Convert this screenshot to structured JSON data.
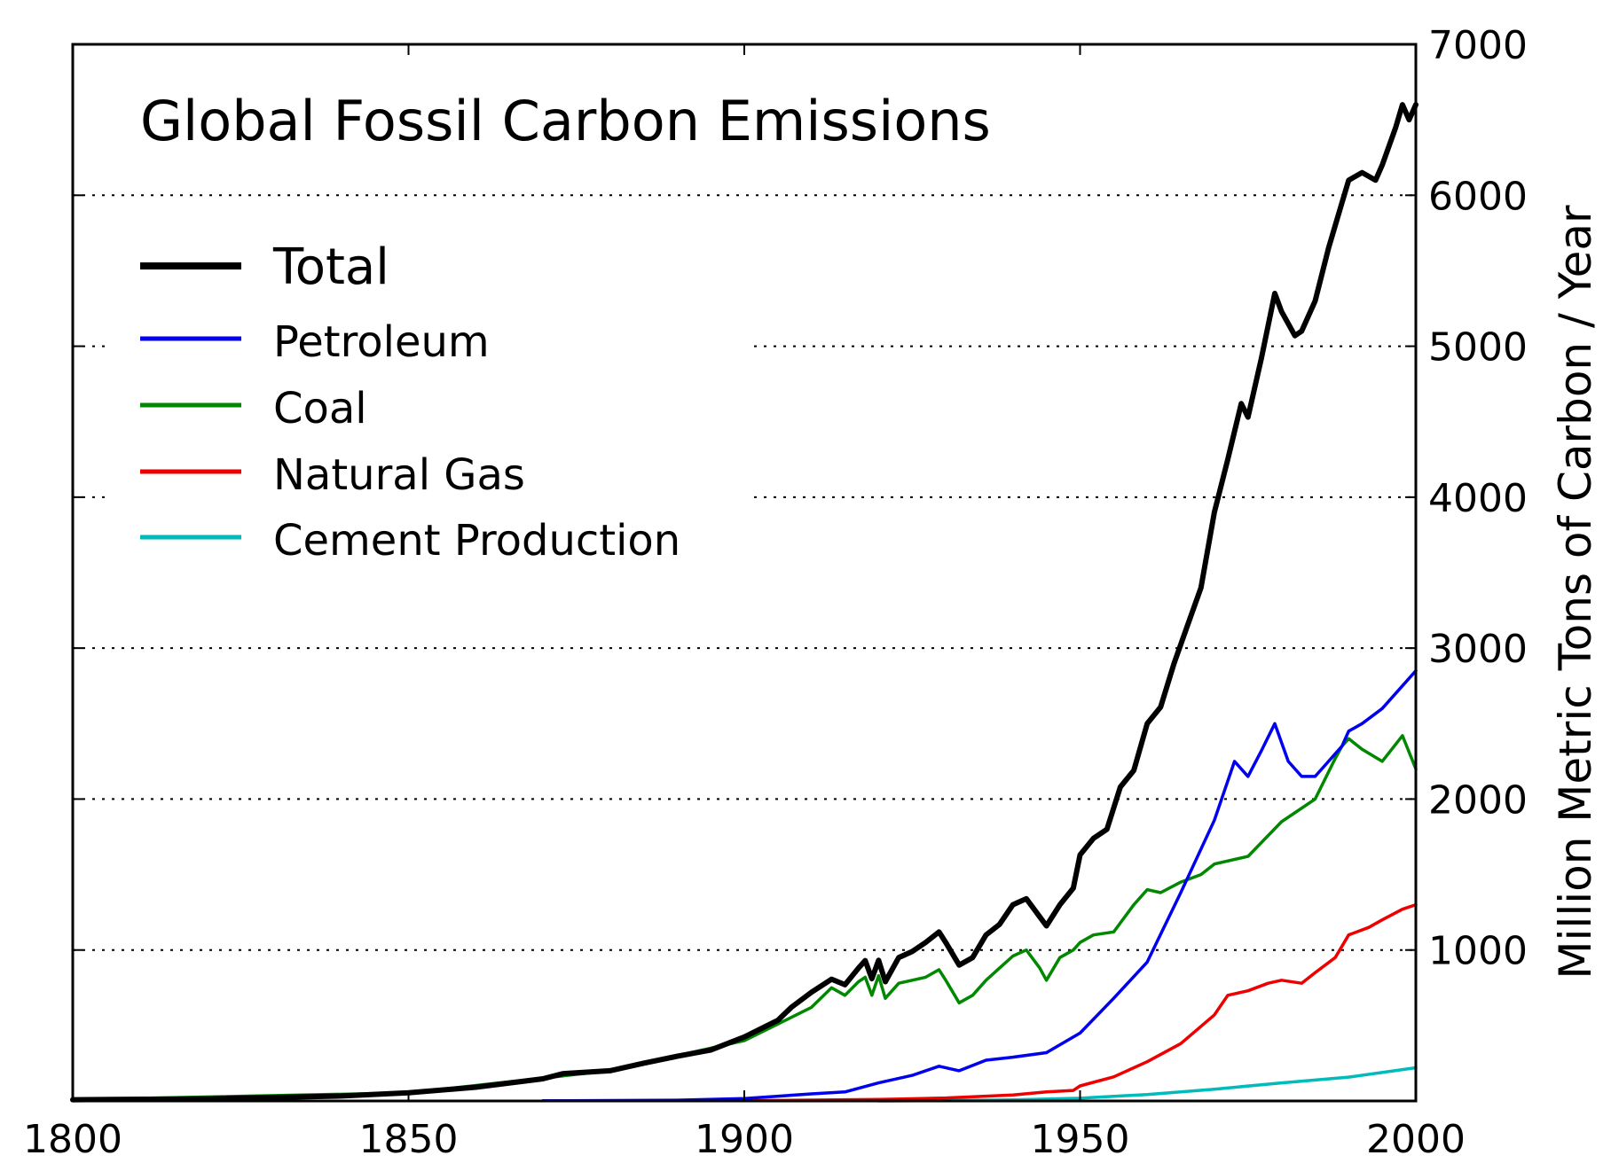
{
  "chart_data": {
    "type": "line",
    "title": "Global Fossil Carbon Emissions",
    "xlabel": "",
    "ylabel": "Million Metric Tons of Carbon / Year",
    "xlim": [
      1800,
      2000
    ],
    "ylim": [
      0,
      7000
    ],
    "x_ticks": [
      1800,
      1850,
      1900,
      1950,
      2000
    ],
    "y_ticks": [
      1000,
      2000,
      3000,
      4000,
      5000,
      6000,
      7000
    ],
    "y_axis_position": "right",
    "grid": "horizontal dotted",
    "legend_position": "top-left",
    "series": [
      {
        "name": "Total",
        "color": "#000000",
        "x": [
          1800,
          1820,
          1840,
          1850,
          1860,
          1870,
          1873,
          1880,
          1885,
          1890,
          1895,
          1900,
          1905,
          1907,
          1910,
          1913,
          1915,
          1917,
          1918,
          1919,
          1920,
          1921,
          1923,
          1925,
          1927,
          1929,
          1930,
          1932,
          1934,
          1936,
          1938,
          1940,
          1942,
          1944,
          1945,
          1947,
          1949,
          1950,
          1952,
          1954,
          1956,
          1958,
          1960,
          1962,
          1964,
          1966,
          1968,
          1970,
          1972,
          1974,
          1975,
          1977,
          1979,
          1980,
          1982,
          1983,
          1985,
          1987,
          1989,
          1990,
          1992,
          1994,
          1995,
          1997,
          1998,
          1999,
          2000
        ],
        "values": [
          8,
          14,
          33,
          54,
          91,
          147,
          181,
          200,
          250,
          296,
          337,
          424,
          535,
          620,
          720,
          807,
          770,
          880,
          930,
          810,
          932,
          790,
          950,
          990,
          1050,
          1120,
          1050,
          900,
          950,
          1100,
          1170,
          1300,
          1340,
          1220,
          1160,
          1300,
          1410,
          1630,
          1740,
          1800,
          2080,
          2190,
          2500,
          2610,
          2900,
          3150,
          3400,
          3900,
          4250,
          4620,
          4530,
          4920,
          5350,
          5230,
          5070,
          5100,
          5300,
          5650,
          5950,
          6100,
          6150,
          6100,
          6200,
          6450,
          6600,
          6500,
          6600
        ]
      },
      {
        "name": "Petroleum",
        "color": "#0000ee",
        "x": [
          1870,
          1890,
          1900,
          1910,
          1915,
          1920,
          1925,
          1929,
          1932,
          1936,
          1940,
          1945,
          1950,
          1955,
          1960,
          1965,
          1970,
          1973,
          1975,
          1977,
          1979,
          1981,
          1983,
          1985,
          1987,
          1989,
          1990,
          1992,
          1995,
          1998,
          2000
        ],
        "values": [
          1,
          5,
          16,
          47,
          60,
          120,
          170,
          230,
          200,
          270,
          290,
          320,
          450,
          680,
          920,
          1380,
          1860,
          2250,
          2150,
          2320,
          2500,
          2250,
          2150,
          2150,
          2250,
          2350,
          2450,
          2500,
          2600,
          2750,
          2850
        ]
      },
      {
        "name": "Coal",
        "color": "#008800",
        "x": [
          1800,
          1850,
          1880,
          1900,
          1905,
          1910,
          1913,
          1915,
          1917,
          1918,
          1919,
          1920,
          1921,
          1923,
          1925,
          1927,
          1929,
          1930,
          1932,
          1934,
          1936,
          1938,
          1940,
          1942,
          1944,
          1945,
          1947,
          1949,
          1950,
          1952,
          1955,
          1958,
          1960,
          1962,
          1965,
          1968,
          1970,
          1975,
          1980,
          1985,
          1988,
          1989,
          1990,
          1992,
          1995,
          1998,
          2000
        ],
        "values": [
          8,
          54,
          200,
          400,
          510,
          620,
          750,
          700,
          790,
          820,
          700,
          830,
          680,
          780,
          800,
          820,
          870,
          800,
          650,
          700,
          800,
          880,
          960,
          1000,
          880,
          800,
          950,
          1000,
          1050,
          1100,
          1120,
          1300,
          1400,
          1380,
          1450,
          1500,
          1570,
          1620,
          1850,
          2000,
          2270,
          2350,
          2400,
          2330,
          2250,
          2420,
          2200
        ]
      },
      {
        "name": "Natural Gas",
        "color": "#ee0000",
        "x": [
          1900,
          1920,
          1930,
          1940,
          1945,
          1949,
          1950,
          1955,
          1960,
          1965,
          1970,
          1972,
          1975,
          1978,
          1980,
          1983,
          1985,
          1988,
          1990,
          1993,
          1995,
          1998,
          2000
        ],
        "values": [
          1,
          10,
          20,
          40,
          60,
          70,
          100,
          160,
          260,
          380,
          570,
          700,
          730,
          780,
          800,
          780,
          850,
          950,
          1100,
          1150,
          1200,
          1270,
          1300
        ]
      },
      {
        "name": "Cement Production",
        "color": "#00bbbb",
        "x": [
          1920,
          1930,
          1940,
          1950,
          1960,
          1970,
          1980,
          1990,
          2000
        ],
        "values": [
          0,
          3,
          7,
          18,
          43,
          78,
          120,
          158,
          220
        ]
      }
    ]
  }
}
